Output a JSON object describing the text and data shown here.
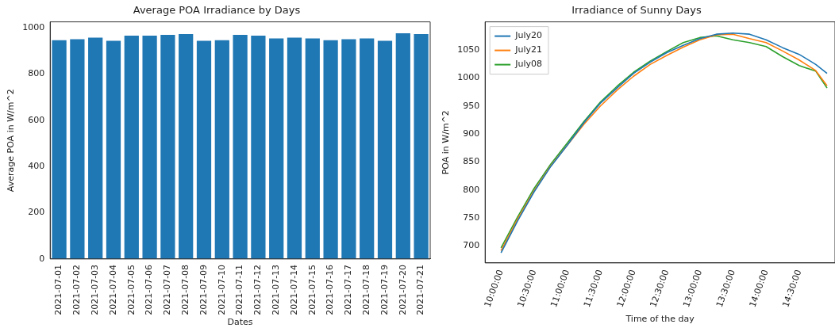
{
  "chart_data": [
    {
      "type": "bar",
      "title": "Average POA Irradiance by Days",
      "xlabel": "Dates",
      "ylabel": "Average POA in W/m^2",
      "categories": [
        "2021-07-01",
        "2021-07-02",
        "2021-07-03",
        "2021-07-04",
        "2021-07-05",
        "2021-07-06",
        "2021-07-07",
        "2021-07-08",
        "2021-07-09",
        "2021-07-10",
        "2021-07-11",
        "2021-07-12",
        "2021-07-13",
        "2021-07-14",
        "2021-07-15",
        "2021-07-16",
        "2021-07-17",
        "2021-07-18",
        "2021-07-19",
        "2021-07-20",
        "2021-07-21"
      ],
      "values": [
        946,
        950,
        957,
        943,
        965,
        965,
        969,
        972,
        943,
        946,
        969,
        965,
        953,
        957,
        953,
        946,
        950,
        953,
        943,
        976,
        972
      ],
      "color": "#1f77b4",
      "ylim": [
        0,
        1025
      ],
      "yticks": [
        0,
        200,
        400,
        600,
        800,
        1000
      ]
    },
    {
      "type": "line",
      "title": "Irradiance of Sunny Days",
      "xlabel": "Time of the day",
      "ylabel": "POA in W/m^2",
      "x": [
        10.0,
        10.25,
        10.5,
        10.75,
        11.0,
        11.25,
        11.5,
        11.75,
        12.0,
        12.25,
        12.5,
        12.75,
        13.0,
        13.25,
        13.5,
        13.75,
        14.0,
        14.25,
        14.5,
        14.75,
        14.92
      ],
      "series": [
        {
          "name": "July20",
          "color": "#1f77b4",
          "values": [
            688,
            745,
            797,
            842,
            880,
            920,
            955,
            982,
            1008,
            1028,
            1045,
            1058,
            1070,
            1078,
            1080,
            1078,
            1068,
            1054,
            1042,
            1024,
            1008
          ]
        },
        {
          "name": "July21",
          "color": "#ff7f0e",
          "values": [
            692,
            748,
            799,
            843,
            880,
            917,
            950,
            978,
            1003,
            1024,
            1040,
            1055,
            1068,
            1077,
            1078,
            1070,
            1063,
            1048,
            1032,
            1013,
            986
          ]
        },
        {
          "name": "July08",
          "color": "#2ca02c",
          "values": [
            697,
            752,
            803,
            846,
            884,
            922,
            957,
            985,
            1010,
            1030,
            1047,
            1063,
            1072,
            1075,
            1068,
            1063,
            1056,
            1038,
            1022,
            1012,
            982
          ]
        }
      ],
      "xlim": [
        9.76,
        15.04
      ],
      "xticks": [
        {
          "value": 10.0,
          "label": "10:00:00"
        },
        {
          "value": 10.5,
          "label": "10:30:00"
        },
        {
          "value": 11.0,
          "label": "11:00:00"
        },
        {
          "value": 11.5,
          "label": "11:30:00"
        },
        {
          "value": 12.0,
          "label": "12:00:00"
        },
        {
          "value": 12.5,
          "label": "12:30:00"
        },
        {
          "value": 13.0,
          "label": "13:00:00"
        },
        {
          "value": 13.5,
          "label": "13:30:00"
        },
        {
          "value": 14.0,
          "label": "14:00:00"
        },
        {
          "value": 14.5,
          "label": "14:30:00"
        }
      ],
      "ylim": [
        670,
        1100
      ],
      "yticks": [
        700,
        750,
        800,
        850,
        900,
        950,
        1000,
        1050
      ],
      "legend": "top left"
    }
  ]
}
